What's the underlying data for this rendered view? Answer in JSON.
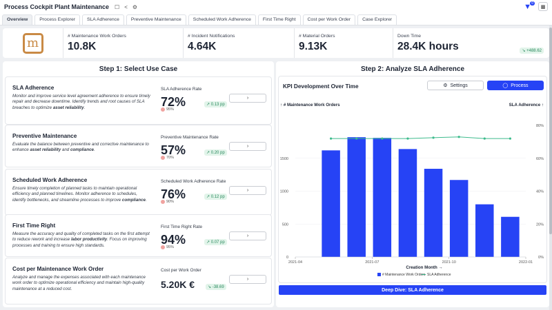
{
  "app": {
    "title": "Process Cockpit Plant Maintenance",
    "filter_count": "0"
  },
  "tabs": [
    {
      "label": "Overview"
    },
    {
      "label": "Process Explorer"
    },
    {
      "label": "SLA Adherence"
    },
    {
      "label": "Preventive Maintenance"
    },
    {
      "label": "Scheduled Work Adherence"
    },
    {
      "label": "First Time Right"
    },
    {
      "label": "Cost per Work Order"
    },
    {
      "label": "Case Explorer"
    }
  ],
  "kpis": [
    {
      "label": "# Maintenance Work Orders",
      "value": "10.8K"
    },
    {
      "label": "# Incident Notifications",
      "value": "4.64K"
    },
    {
      "label": "# Material Orders",
      "value": "9.13K"
    },
    {
      "label": "Down Time",
      "value": "28.4K hours",
      "delta": "↘ +488.62"
    }
  ],
  "left_panel": {
    "title": "Step 1: Select Use Case",
    "cards": [
      {
        "title": "SLA Adherence",
        "desc_parts": [
          "Monitor and improve service level agreement adherence to ensure timely repair and decrease downtime. Identify trends and root causes of SLA breaches to optimize ",
          "asset reliability",
          "."
        ],
        "metric_label": "SLA Adherence Rate",
        "value": "72%",
        "target": "95%",
        "delta": "↗ 0.13 pp",
        "button": "›"
      },
      {
        "title": "Preventive Maintenance",
        "desc_parts": [
          "Evaluate the balance between preventive and corrective maintenance to enhance ",
          "asset reliability",
          " and ",
          "compliance",
          "."
        ],
        "metric_label": "Preventive Maintenance Rate",
        "value": "57%",
        "target": "70%",
        "delta": "↗ 0.20 pp",
        "button": "›"
      },
      {
        "title": "Scheduled Work Adherence",
        "desc_parts": [
          "Ensure timely completion of planned tasks to maintain operational efficiency and planned timelines. Monitor adherence to schedules, identify bottlenecks, and streamline processes to improve ",
          "compliance",
          "."
        ],
        "metric_label": "Scheduled Work Adherence Rate",
        "value": "76%",
        "target": "90%",
        "delta": "↗ 0.12 pp",
        "button": "›"
      },
      {
        "title": "First Time Right",
        "desc_parts": [
          "Measure the accuracy and quality of completed tasks on the first attempt to reduce rework and increase ",
          "labor productivity",
          ". Focus on improving processes and training to ensure high standards."
        ],
        "metric_label": "First Time Right Rate",
        "value": "94%",
        "target": "95%",
        "delta": "↗ 0.07 pp",
        "button": "›"
      },
      {
        "title": "Cost per Maintenance Work Order",
        "desc_parts": [
          "Analyze and manage the expenses associated with each maintenance work order to optimize operational efficiency and maintain high-quality maintenance at a reduced cost."
        ],
        "metric_label": "Cost per Work Order",
        "value": "5.20K €",
        "target": "",
        "delta": "↘ -38.69",
        "button": "›"
      }
    ]
  },
  "right_panel": {
    "title": "Step 2: Analyze SLA Adherence",
    "chart_title": "KPI Development Over Time",
    "settings_label": "Settings",
    "process_label": "Process",
    "deep_dive_label": "Deep Dive: SLA Adherence"
  },
  "colors": {
    "accent": "#2643f5",
    "line": "#3dbb8c",
    "logo": "#c98a45"
  },
  "chart_data": {
    "type": "bar",
    "title": "KPI Development Over Time",
    "xlabel": "Creation Month →",
    "left_axis_label": "↑ # Maintenance Work Orders",
    "right_axis_label": "SLA Adherence ↑",
    "x_ticks": [
      "2021-04",
      "2021-07",
      "2021-10",
      "2022-01"
    ],
    "y_left_ticks": [
      "0",
      "500",
      "1000",
      "1500"
    ],
    "y_right_ticks": [
      "0%",
      "20%",
      "40%",
      "60%",
      "80%"
    ],
    "ylim_left": [
      0,
      2000
    ],
    "ylim_right": [
      0,
      80
    ],
    "months": [
      "2021-05",
      "2021-06",
      "2021-07",
      "2021-08",
      "2021-09",
      "2021-10",
      "2021-11",
      "2021-12"
    ],
    "series": [
      {
        "name": "# Maintenance Work Orders",
        "type": "bar",
        "values": [
          1620,
          1820,
          1810,
          1640,
          1340,
          1170,
          800,
          610
        ]
      },
      {
        "name": "SLA Adherence",
        "type": "line",
        "values": [
          72,
          72,
          72,
          72,
          72.5,
          73,
          72,
          72
        ]
      }
    ]
  }
}
